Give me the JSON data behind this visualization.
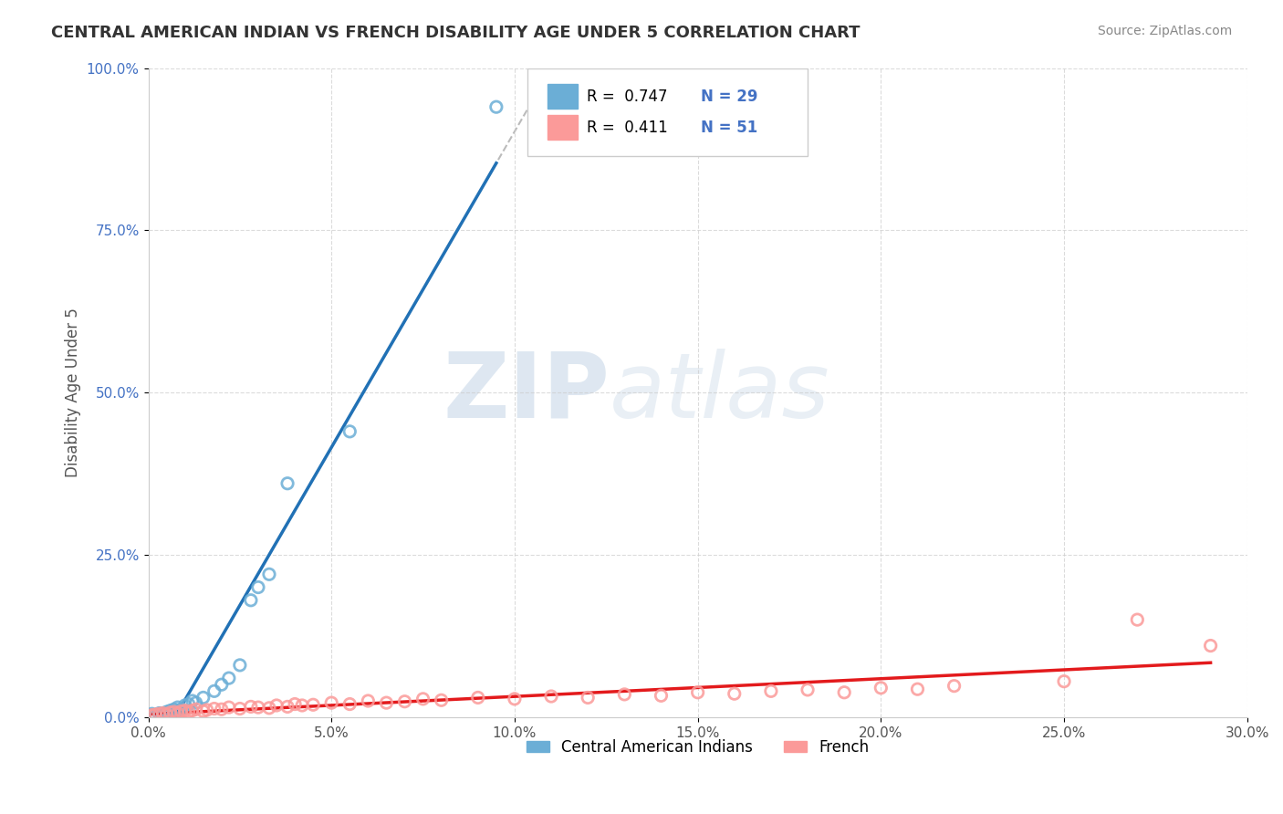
{
  "title": "CENTRAL AMERICAN INDIAN VS FRENCH DISABILITY AGE UNDER 5 CORRELATION CHART",
  "source": "Source: ZipAtlas.com",
  "xlabel": "",
  "ylabel": "Disability Age Under 5",
  "xlim": [
    0.0,
    0.3
  ],
  "ylim": [
    0.0,
    1.0
  ],
  "xticks": [
    0.0,
    0.05,
    0.1,
    0.15,
    0.2,
    0.25,
    0.3
  ],
  "xticklabels": [
    "0.0%",
    "5.0%",
    "10.0%",
    "15.0%",
    "20.0%",
    "25.0%",
    "30.0%"
  ],
  "yticks": [
    0.0,
    0.25,
    0.5,
    0.75,
    1.0
  ],
  "yticklabels": [
    "0.0%",
    "25.0%",
    "50.0%",
    "75.0%",
    "100.0%"
  ],
  "blue_color": "#6baed6",
  "pink_color": "#fb9a99",
  "blue_line_color": "#2171b5",
  "pink_line_color": "#e31a1c",
  "R_blue": 0.747,
  "N_blue": 29,
  "R_pink": 0.411,
  "N_pink": 51,
  "legend_label_blue": "Central American Indians",
  "legend_label_pink": "French",
  "watermark_zip": "ZIP",
  "watermark_atlas": "atlas",
  "background_color": "#ffffff",
  "grid_color": "#cccccc",
  "blue_scatter_x": [
    0.001,
    0.002,
    0.003,
    0.003,
    0.004,
    0.005,
    0.005,
    0.006,
    0.006,
    0.007,
    0.007,
    0.008,
    0.008,
    0.009,
    0.01,
    0.011,
    0.012,
    0.013,
    0.015,
    0.018,
    0.02,
    0.022,
    0.025,
    0.028,
    0.03,
    0.033,
    0.038,
    0.055,
    0.095
  ],
  "blue_scatter_y": [
    0.005,
    0.003,
    0.006,
    0.004,
    0.005,
    0.008,
    0.007,
    0.01,
    0.006,
    0.012,
    0.008,
    0.01,
    0.015,
    0.012,
    0.018,
    0.02,
    0.025,
    0.022,
    0.03,
    0.04,
    0.05,
    0.06,
    0.08,
    0.18,
    0.2,
    0.22,
    0.36,
    0.44,
    0.94
  ],
  "pink_scatter_x": [
    0.001,
    0.002,
    0.003,
    0.004,
    0.005,
    0.006,
    0.007,
    0.008,
    0.009,
    0.01,
    0.011,
    0.012,
    0.013,
    0.015,
    0.016,
    0.018,
    0.02,
    0.022,
    0.025,
    0.028,
    0.03,
    0.033,
    0.035,
    0.038,
    0.04,
    0.042,
    0.045,
    0.05,
    0.055,
    0.06,
    0.065,
    0.07,
    0.075,
    0.08,
    0.09,
    0.1,
    0.11,
    0.12,
    0.13,
    0.14,
    0.15,
    0.16,
    0.17,
    0.18,
    0.19,
    0.2,
    0.21,
    0.22,
    0.25,
    0.27,
    0.29
  ],
  "pink_scatter_y": [
    0.003,
    0.004,
    0.005,
    0.006,
    0.004,
    0.007,
    0.008,
    0.006,
    0.009,
    0.01,
    0.008,
    0.01,
    0.012,
    0.009,
    0.011,
    0.013,
    0.012,
    0.015,
    0.013,
    0.016,
    0.015,
    0.014,
    0.018,
    0.016,
    0.02,
    0.018,
    0.019,
    0.022,
    0.02,
    0.025,
    0.022,
    0.024,
    0.028,
    0.026,
    0.03,
    0.028,
    0.032,
    0.03,
    0.035,
    0.033,
    0.038,
    0.036,
    0.04,
    0.042,
    0.038,
    0.045,
    0.043,
    0.048,
    0.055,
    0.15,
    0.11
  ]
}
